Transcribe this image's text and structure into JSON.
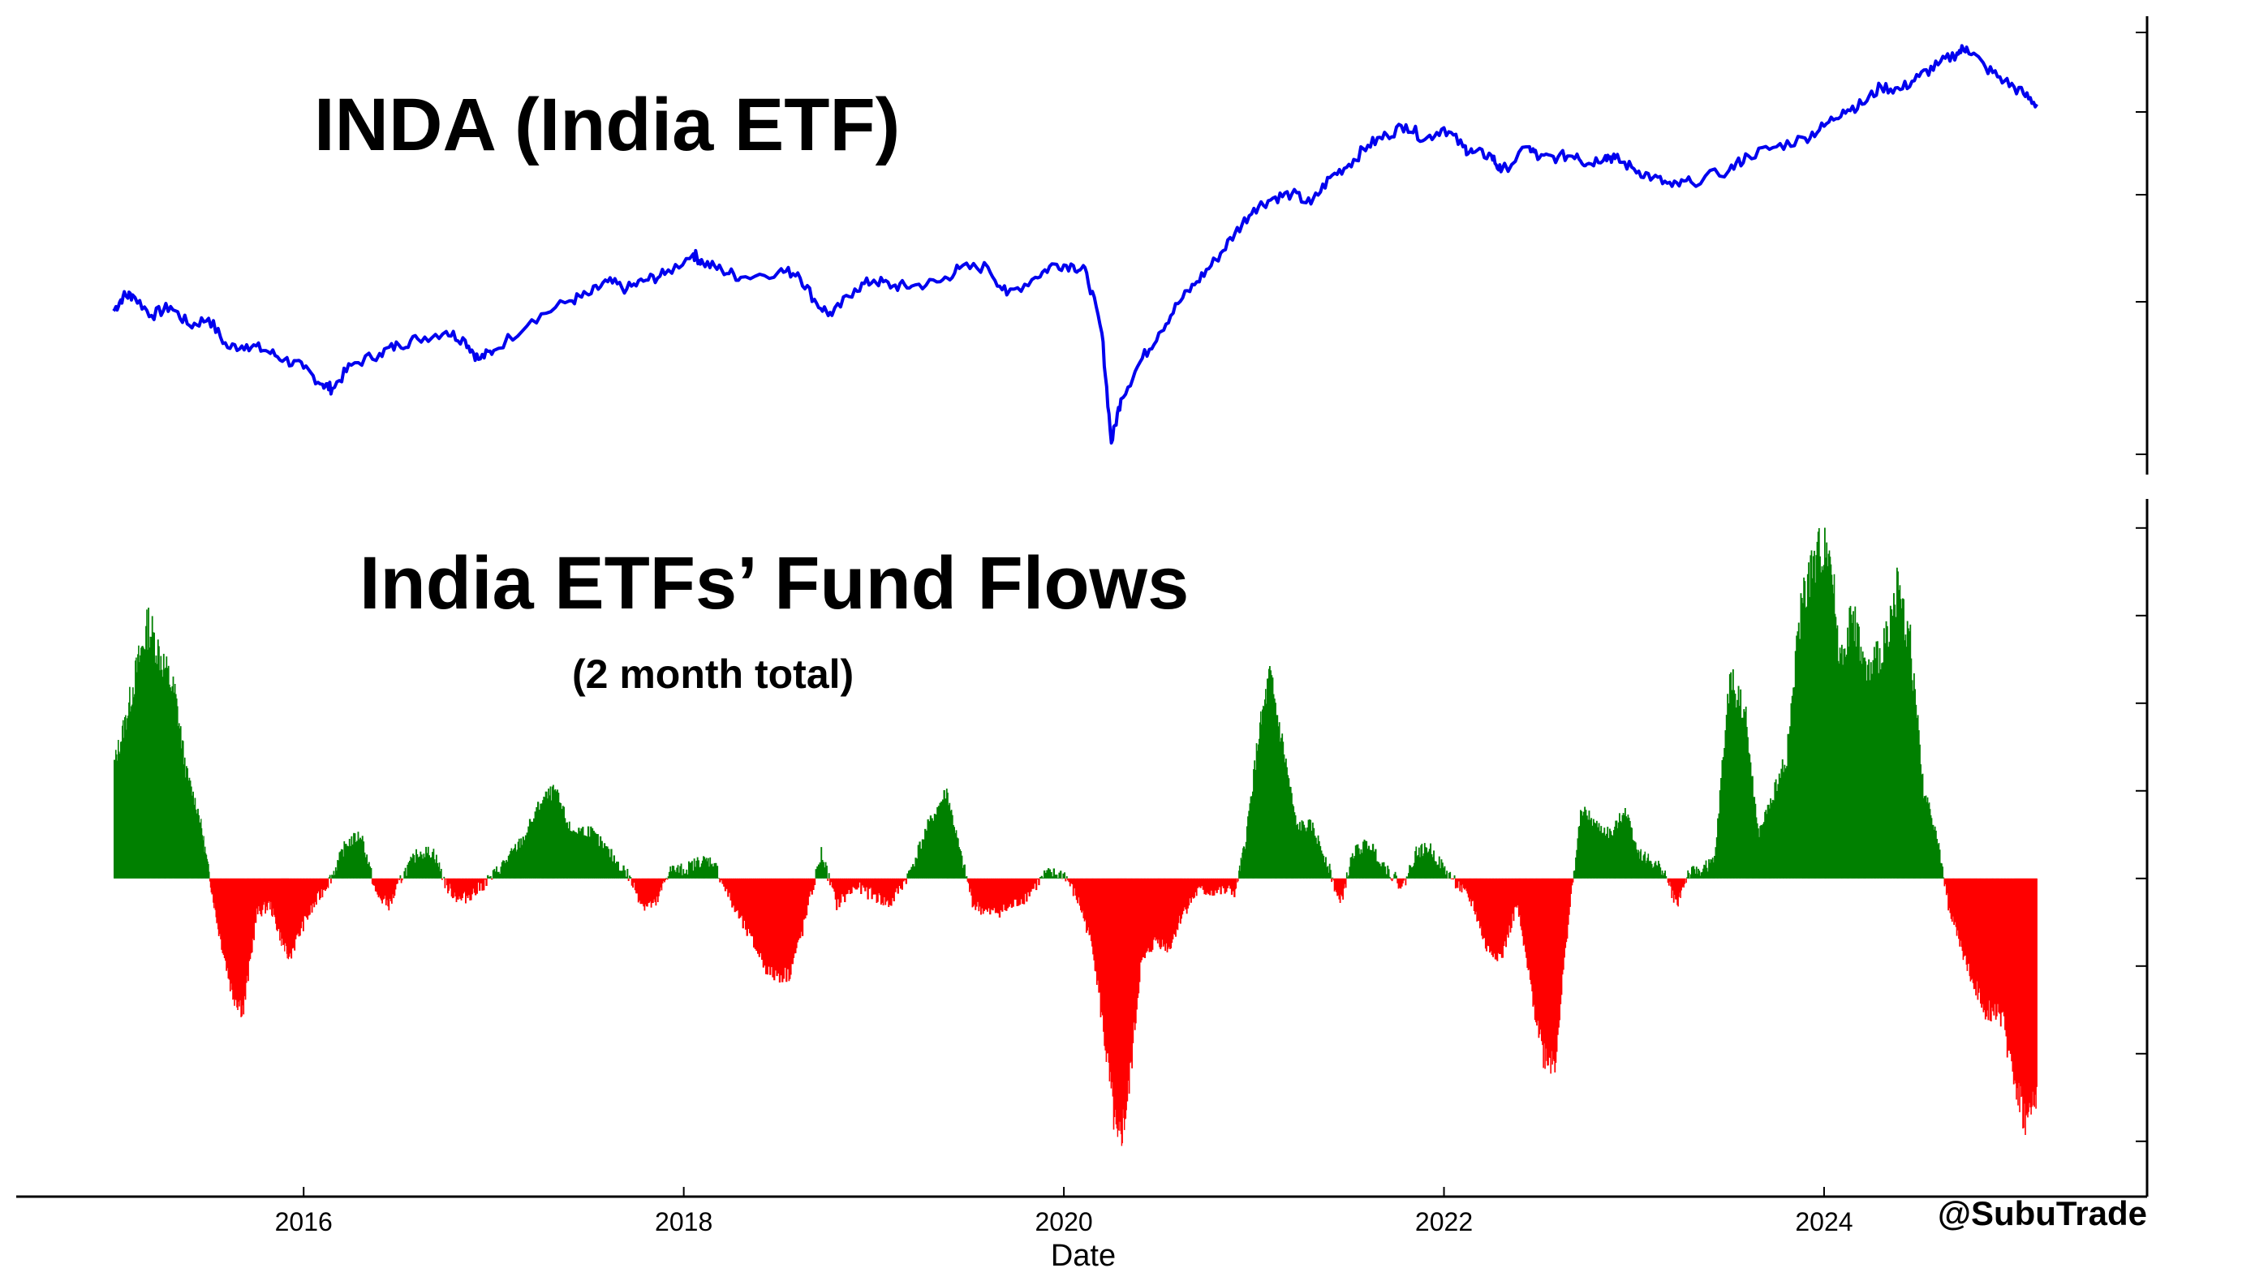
{
  "chart_data": [
    {
      "type": "line",
      "title": "INDA (India ETF)",
      "color": "#0000ee",
      "x_range": [
        2015.0,
        2025.17
      ],
      "x_ticks": [
        "2016",
        "2018",
        "2020",
        "2022",
        "2024"
      ],
      "grid": false,
      "series": [
        {
          "x": [
            2015.0,
            2015.05,
            2015.1,
            2015.2,
            2015.3,
            2015.4,
            2015.5,
            2015.6,
            2015.7,
            2015.8,
            2015.9,
            2016.0,
            2016.1,
            2016.15,
            2016.25,
            2016.4,
            2016.5,
            2016.6,
            2016.75,
            2016.85,
            2016.92,
            2017.0,
            2017.2,
            2017.4,
            2017.5,
            2017.6,
            2017.7,
            2017.8,
            2017.9,
            2018.05,
            2018.1,
            2018.2,
            2018.3,
            2018.5,
            2018.6,
            2018.7,
            2018.78,
            2018.9,
            2019.0,
            2019.1,
            2019.2,
            2019.35,
            2019.45,
            2019.6,
            2019.7,
            2019.85,
            2019.95,
            2020.05,
            2020.12,
            2020.2,
            2020.25,
            2020.3,
            2020.4,
            2020.5,
            2020.6,
            2020.7,
            2020.8,
            2020.9,
            2021.0,
            2021.1,
            2021.2,
            2021.3,
            2021.4,
            2021.5,
            2021.6,
            2021.7,
            2021.8,
            2021.9,
            2022.0,
            2022.1,
            2022.15,
            2022.25,
            2022.3,
            2022.45,
            2022.5,
            2022.6,
            2022.7,
            2022.75,
            2022.85,
            2022.9,
            2023.0,
            2023.1,
            2023.2,
            2023.3,
            2023.5,
            2023.6,
            2023.75,
            2023.9,
            2024.0,
            2024.1,
            2024.2,
            2024.3,
            2024.4,
            2024.5,
            2024.6,
            2024.7,
            2024.75,
            2024.85,
            2024.95,
            2025.05,
            2025.12
          ],
          "y": [
            43.5,
            44.5,
            44.6,
            43.2,
            43.8,
            42.5,
            43.0,
            41.0,
            41.2,
            40.8,
            40.2,
            39.6,
            38.5,
            38.2,
            39.8,
            40.6,
            41.2,
            41.6,
            42.1,
            41.5,
            40.2,
            40.8,
            42.9,
            44.2,
            44.6,
            45.5,
            45.0,
            45.6,
            46.0,
            47.4,
            46.8,
            46.3,
            45.8,
            46.2,
            46.1,
            44.0,
            43.2,
            45.0,
            45.6,
            45.2,
            45.2,
            45.5,
            46.4,
            46.5,
            44.6,
            45.8,
            46.7,
            46.6,
            46.1,
            42.0,
            34.5,
            37.5,
            40.0,
            42.0,
            44.0,
            45.5,
            47.0,
            48.8,
            50.5,
            51.2,
            51.5,
            50.8,
            52.6,
            53.5,
            54.8,
            55.5,
            56.2,
            55.2,
            56.0,
            54.7,
            54.3,
            54.1,
            53.0,
            54.7,
            53.9,
            54.0,
            54.2,
            53.5,
            54.1,
            53.9,
            53.2,
            52.6,
            52.0,
            52.3,
            53.1,
            54.1,
            54.7,
            55.3,
            56.1,
            57.2,
            57.6,
            58.8,
            58.6,
            59.5,
            60.3,
            61.1,
            61.5,
            60.1,
            59.2,
            58.3,
            57.6
          ]
        }
      ]
    },
    {
      "type": "bar",
      "title": "India ETFs’ Fund Flows",
      "subtitle": "(2 month total)",
      "xlabel": "Date",
      "x_ticks": [
        "2016",
        "2018",
        "2020",
        "2022",
        "2024"
      ],
      "x_range": [
        2015.0,
        2025.17
      ],
      "ylim": [
        -3.4,
        4.1
      ],
      "positive_color": "#008000",
      "negative_color": "#ff0000",
      "grid": false,
      "series": [
        {
          "x": [
            2015.0,
            2015.06,
            2015.12,
            2015.18,
            2015.25,
            2015.32,
            2015.38,
            2015.45,
            2015.5,
            2015.55,
            2015.62,
            2015.68,
            2015.75,
            2015.82,
            2015.88,
            2015.92,
            2016.0,
            2016.08,
            2016.15,
            2016.22,
            2016.3,
            2016.38,
            2016.45,
            2016.52,
            2016.6,
            2016.68,
            2016.75,
            2016.82,
            2016.9,
            2017.0,
            2017.08,
            2017.15,
            2017.25,
            2017.32,
            2017.4,
            2017.5,
            2017.6,
            2017.7,
            2017.78,
            2017.85,
            2017.92,
            2018.0,
            2018.08,
            2018.15,
            2018.25,
            2018.35,
            2018.45,
            2018.55,
            2018.62,
            2018.72,
            2018.8,
            2018.9,
            2019.0,
            2019.08,
            2019.18,
            2019.28,
            2019.38,
            2019.45,
            2019.52,
            2019.6,
            2019.7,
            2019.8,
            2019.9,
            2020.0,
            2020.08,
            2020.15,
            2020.22,
            2020.28,
            2020.33,
            2020.4,
            2020.48,
            2020.55,
            2020.62,
            2020.7,
            2020.8,
            2020.9,
            2020.95,
            2021.02,
            2021.08,
            2021.15,
            2021.22,
            2021.3,
            2021.38,
            2021.45,
            2021.52,
            2021.6,
            2021.7,
            2021.78,
            2021.85,
            2021.92,
            2022.0,
            2022.08,
            2022.15,
            2022.22,
            2022.3,
            2022.38,
            2022.45,
            2022.52,
            2022.58,
            2022.65,
            2022.72,
            2022.8,
            2022.88,
            2022.95,
            2023.02,
            2023.08,
            2023.15,
            2023.22,
            2023.28,
            2023.35,
            2023.42,
            2023.5,
            2023.58,
            2023.65,
            2023.72,
            2023.8,
            2023.88,
            2023.95,
            2024.02,
            2024.08,
            2024.15,
            2024.22,
            2024.3,
            2024.38,
            2024.45,
            2024.52,
            2024.58,
            2024.65,
            2024.72,
            2024.78,
            2024.85,
            2024.92,
            2025.0,
            2025.06,
            2025.12
          ],
          "values": [
            1.3,
            1.8,
            2.4,
            2.9,
            2.5,
            2.1,
            1.2,
            0.7,
            0.05,
            -0.6,
            -1.3,
            -1.5,
            -0.4,
            -0.3,
            -0.7,
            -0.9,
            -0.5,
            -0.2,
            0.05,
            0.4,
            0.5,
            -0.2,
            -0.3,
            0.05,
            0.3,
            0.3,
            -0.1,
            -0.25,
            -0.15,
            0.05,
            0.25,
            0.45,
            0.9,
            1.0,
            0.55,
            0.55,
            0.3,
            0.05,
            -0.3,
            -0.3,
            0.1,
            0.1,
            0.2,
            0.2,
            -0.3,
            -0.7,
            -1.1,
            -1.1,
            -0.6,
            0.3,
            -0.3,
            -0.1,
            -0.2,
            -0.3,
            0.05,
            0.6,
            1.0,
            0.3,
            -0.3,
            -0.4,
            -0.35,
            -0.2,
            0.05,
            0.05,
            -0.3,
            -0.8,
            -2.0,
            -3.1,
            -2.6,
            -1.0,
            -0.7,
            -0.8,
            -0.4,
            -0.15,
            -0.15,
            -0.15,
            0.4,
            1.6,
            2.3,
            1.5,
            0.6,
            0.6,
            0.2,
            -0.3,
            0.3,
            0.4,
            0.1,
            -0.1,
            0.3,
            0.35,
            0.1,
            -0.1,
            -0.3,
            -0.8,
            -0.9,
            -0.3,
            -1.2,
            -2.0,
            -2.1,
            -0.5,
            0.8,
            0.6,
            0.5,
            0.8,
            0.3,
            0.2,
            0.1,
            -0.3,
            0.05,
            0.1,
            0.2,
            2.3,
            1.9,
            0.5,
            0.9,
            1.4,
            3.2,
            3.6,
            3.9,
            2.5,
            3.0,
            2.3,
            2.6,
            3.3,
            2.7,
            1.0,
            0.6,
            -0.3,
            -0.8,
            -1.2,
            -1.5,
            -1.5,
            -2.3,
            -2.8,
            -2.5
          ]
        }
      ]
    }
  ],
  "credit": "@SubuTrade"
}
